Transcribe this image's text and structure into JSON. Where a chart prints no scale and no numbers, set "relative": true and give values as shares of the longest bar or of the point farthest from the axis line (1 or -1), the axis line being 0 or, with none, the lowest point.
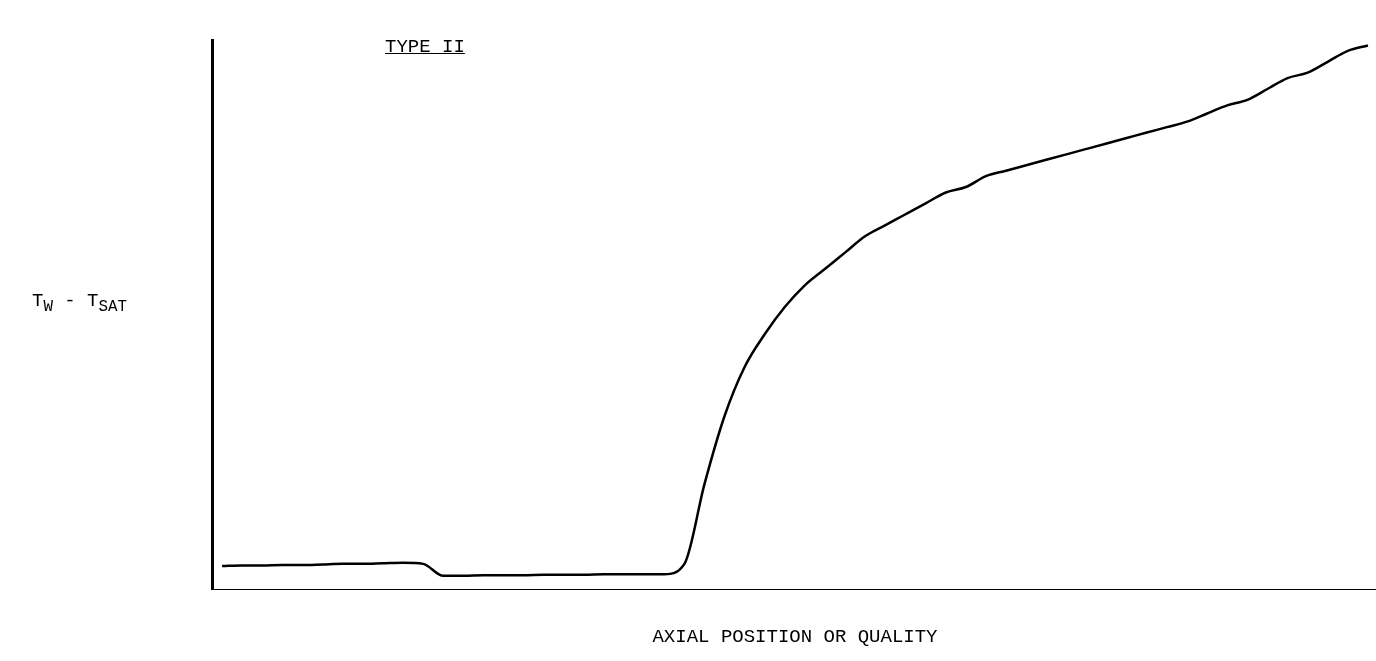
{
  "chart_data": {
    "type": "line",
    "title": "TYPE II",
    "xlabel": "AXIAL POSITION OR QUALITY",
    "ylabel": "T$_{W}$ - T$_{SAT}$",
    "relative": true,
    "marker": "none",
    "categories": [
      null,
      null,
      null,
      null,
      null,
      null,
      null,
      null,
      null,
      null,
      null,
      null,
      null,
      null,
      null,
      null,
      null,
      null,
      null,
      null,
      null,
      null,
      null,
      null,
      null,
      null,
      null,
      null,
      null,
      null,
      null,
      null,
      null,
      null,
      null,
      null,
      null,
      null,
      null,
      null,
      null,
      null,
      null,
      null,
      null,
      null,
      null,
      null,
      null,
      null,
      null,
      null,
      null,
      null,
      null,
      null,
      null,
      null
    ],
    "series": [
      {
        "color": "#000000",
        "values": [
          0.044,
          0.045,
          0.045,
          0.046,
          0.046,
          0.047,
          0.048,
          0.048,
          0.049,
          0.05,
          0.048,
          0.026,
          0.026,
          0.027,
          0.027,
          0.027,
          0.028,
          0.028,
          0.028,
          0.029,
          0.029,
          0.029,
          0.029,
          0.048,
          0.195,
          0.32,
          0.41,
          0.47,
          0.52,
          0.56,
          0.59,
          0.62,
          0.65,
          0.67,
          0.69,
          0.71,
          0.73,
          0.74,
          0.76,
          0.77,
          0.78,
          0.79,
          0.8,
          0.81,
          0.82,
          0.83,
          0.84,
          0.85,
          0.86,
          0.875,
          0.89,
          0.9,
          0.92,
          0.94,
          0.95,
          0.97,
          0.99,
          1.0
        ]
      }
    ]
  }
}
